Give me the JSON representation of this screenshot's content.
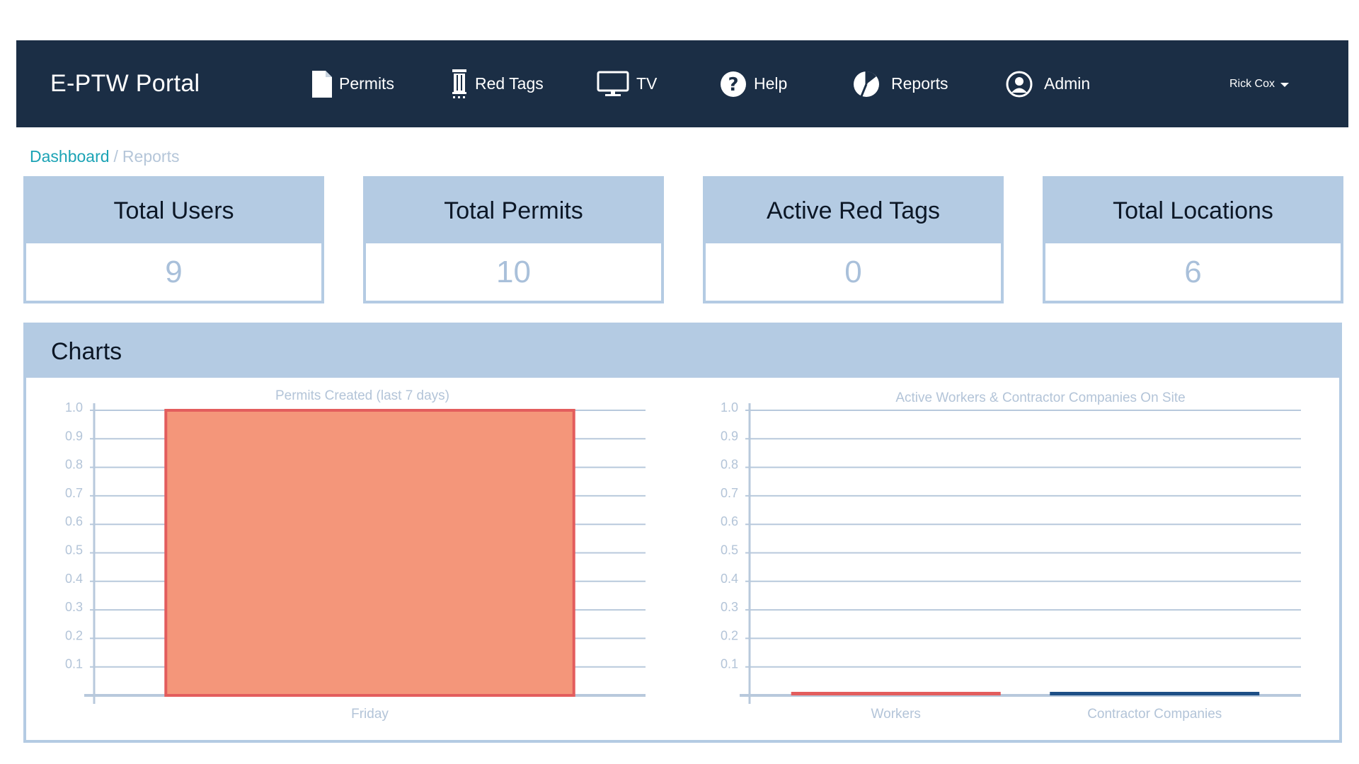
{
  "navbar": {
    "brand": "E-PTW Portal",
    "items": [
      {
        "label": "Permits",
        "icon": "document-icon"
      },
      {
        "label": "Red Tags",
        "icon": "red-tag-icon"
      },
      {
        "label": "TV",
        "icon": "monitor-icon"
      },
      {
        "label": "Help",
        "icon": "help-icon"
      },
      {
        "label": "Reports",
        "icon": "pie-chart-icon"
      },
      {
        "label": "Admin",
        "icon": "user-circle-icon"
      }
    ],
    "user": "Rick Cox"
  },
  "breadcrumb": {
    "home": "Dashboard",
    "separator": "/",
    "current": "Reports"
  },
  "stats": [
    {
      "title": "Total Users",
      "value": "9"
    },
    {
      "title": "Total Permits",
      "value": "10"
    },
    {
      "title": "Active Red Tags",
      "value": "0"
    },
    {
      "title": "Total Locations",
      "value": "6"
    }
  ],
  "charts_section": {
    "title": "Charts"
  },
  "colors": {
    "navbar": "#1b2e45",
    "accent_link": "#1ba3b5",
    "card_header": "#b4cbe3",
    "permits_bar_fill": "#f4967a",
    "permits_bar_border": "#e35d5d",
    "workers": "#e35d5d",
    "contractors": "#1d4f86"
  },
  "chart_data": [
    {
      "type": "bar",
      "title": "Permits Created (last 7 days)",
      "categories": [
        "Friday"
      ],
      "values": [
        1
      ],
      "ylim": [
        0,
        1.0
      ],
      "yticks": [
        "0.1",
        "0.2",
        "0.3",
        "0.4",
        "0.5",
        "0.6",
        "0.7",
        "0.8",
        "0.9",
        "1.0"
      ],
      "grid": true
    },
    {
      "type": "bar",
      "title": "Active Workers & Contractor Companies On Site",
      "categories": [
        "Workers",
        "Contractor Companies"
      ],
      "values": [
        0,
        0
      ],
      "ylim": [
        0,
        1.0
      ],
      "yticks": [
        "0.1",
        "0.2",
        "0.3",
        "0.4",
        "0.5",
        "0.6",
        "0.7",
        "0.8",
        "0.9",
        "1.0"
      ],
      "grid": true
    }
  ]
}
